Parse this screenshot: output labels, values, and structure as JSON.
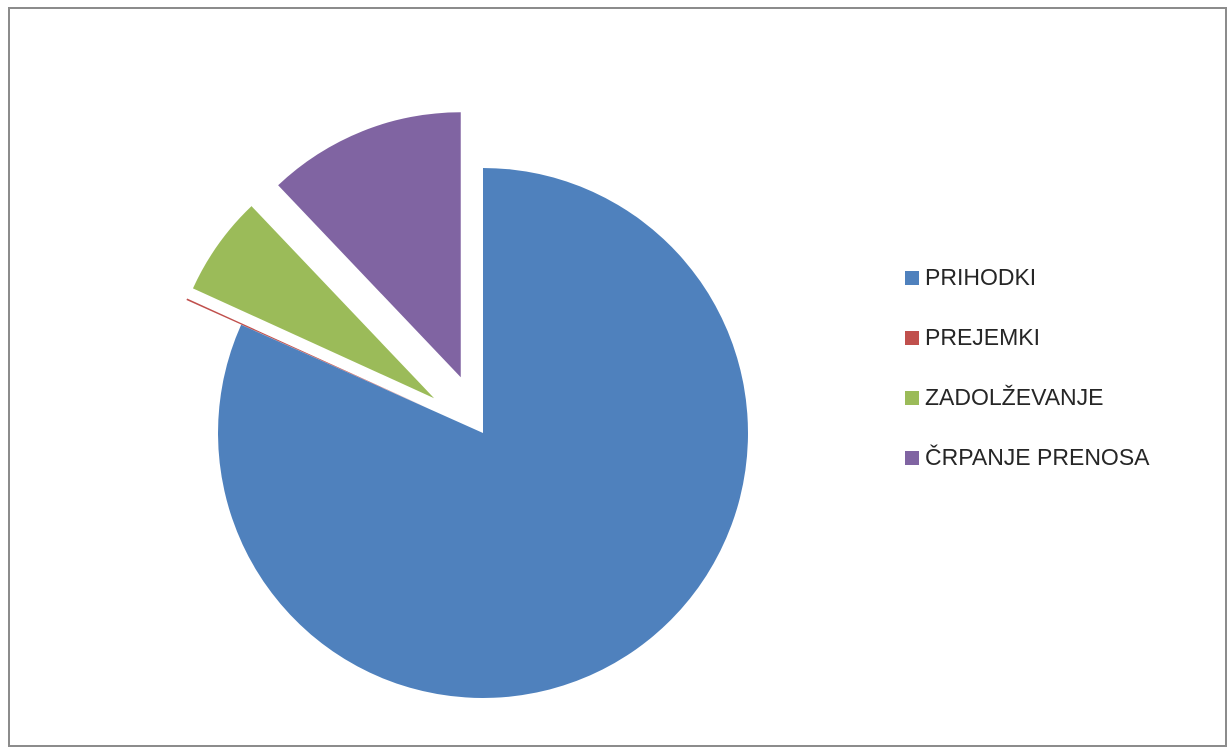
{
  "chart_data": {
    "type": "pie",
    "title": "",
    "categories": [
      "PRIHODKI",
      "PREJEMKI",
      "ZADOLŽEVANJE",
      "ČRPANJE PRENOSA"
    ],
    "values": [
      81.7,
      0.1,
      6.1,
      12.1
    ],
    "unit": "% of total (estimated)",
    "colors": [
      "#4F81BD",
      "#C0504D",
      "#9BBB59",
      "#8064A2"
    ],
    "exploded": [
      false,
      true,
      true,
      true
    ],
    "legend": {
      "placement": "right"
    }
  }
}
